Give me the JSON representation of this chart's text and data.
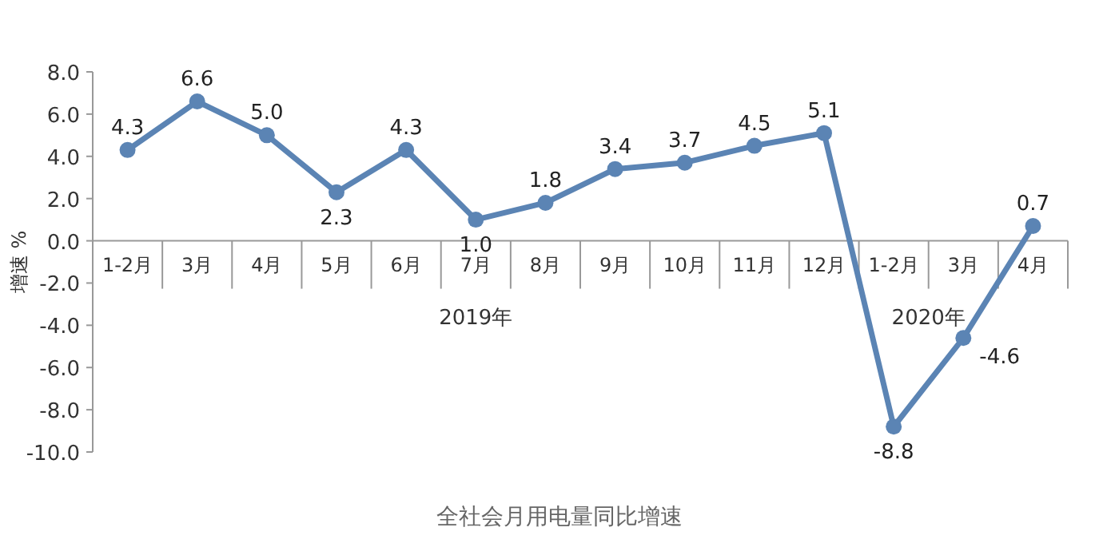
{
  "chart_data": {
    "type": "line",
    "title": "全社会月用电量同比增速",
    "ylabel": "增速 %",
    "categories": [
      "1-2月",
      "3月",
      "4月",
      "5月",
      "6月",
      "7月",
      "8月",
      "9月",
      "10月",
      "11月",
      "12月",
      "1-2月",
      "3月",
      "4月"
    ],
    "values": [
      4.3,
      6.6,
      5.0,
      2.3,
      4.3,
      1.0,
      1.8,
      3.4,
      3.7,
      4.5,
      5.1,
      -8.8,
      -4.6,
      0.7
    ],
    "value_labels": [
      "4.3",
      "6.6",
      "5.0",
      "2.3",
      "4.3",
      "1.0",
      "1.8",
      "3.4",
      "3.7",
      "4.5",
      "5.1",
      "-8.8",
      "-4.6",
      "0.7"
    ],
    "color": "#5b84b4",
    "marker": "circle",
    "ylim": [
      -10,
      8
    ],
    "yticks": [
      {
        "value": -10,
        "label": "-10.0"
      },
      {
        "value": -8,
        "label": "-8.0"
      },
      {
        "value": -6,
        "label": "-6.0"
      },
      {
        "value": -4,
        "label": "-4.0"
      },
      {
        "value": -2,
        "label": "-2.0"
      },
      {
        "value": 0,
        "label": "0.0"
      },
      {
        "value": 2,
        "label": "2.0"
      },
      {
        "value": 4,
        "label": "4.0"
      },
      {
        "value": 6,
        "label": "6.0"
      },
      {
        "value": 8,
        "label": "8.0"
      }
    ],
    "annotations": [
      "2019年",
      "2020年"
    ]
  }
}
